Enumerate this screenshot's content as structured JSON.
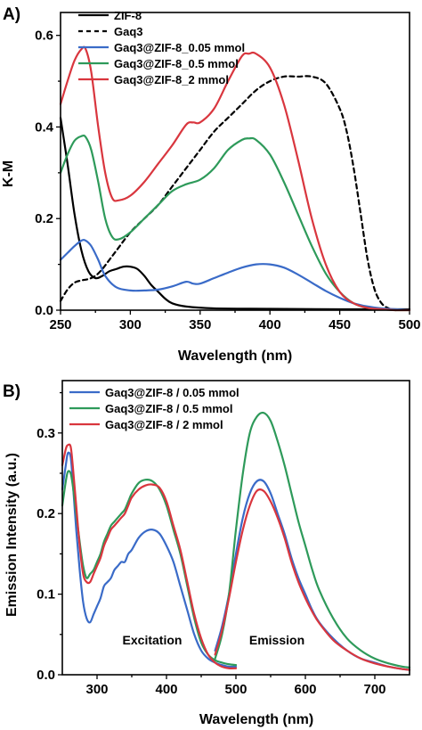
{
  "chart_data": [
    {
      "type": "line",
      "panel_label": "A)",
      "xlabel": "Wavelength (nm)",
      "ylabel": "K-M",
      "xlim": [
        250,
        500
      ],
      "ylim": [
        0,
        0.65
      ],
      "xticks": [
        "250",
        "300",
        "350",
        "400",
        "450",
        "500"
      ],
      "yticks": [
        "0.0",
        "0.2",
        "0.4",
        "0.6"
      ],
      "legend_position": "top-left",
      "series": [
        {
          "name": "ZIF-8",
          "color": "#000000",
          "dash": "solid",
          "x": [
            250,
            255,
            260,
            265,
            270,
            275,
            280,
            285,
            290,
            295,
            300,
            305,
            310,
            315,
            320,
            325,
            330,
            340,
            360,
            400,
            450,
            500
          ],
          "y": [
            0.42,
            0.32,
            0.21,
            0.13,
            0.085,
            0.07,
            0.075,
            0.085,
            0.09,
            0.095,
            0.095,
            0.09,
            0.075,
            0.055,
            0.04,
            0.025,
            0.015,
            0.008,
            0.004,
            0.003,
            0.002,
            0.002
          ]
        },
        {
          "name": "Gaq3",
          "color": "#000000",
          "dash": "dashed",
          "x": [
            250,
            255,
            260,
            265,
            270,
            275,
            280,
            285,
            290,
            300,
            310,
            320,
            330,
            340,
            350,
            360,
            370,
            380,
            390,
            400,
            410,
            420,
            430,
            440,
            450,
            455,
            460,
            465,
            470,
            475,
            480,
            485,
            490
          ],
          "y": [
            0.02,
            0.045,
            0.06,
            0.065,
            0.068,
            0.075,
            0.09,
            0.11,
            0.13,
            0.17,
            0.2,
            0.23,
            0.27,
            0.31,
            0.35,
            0.39,
            0.42,
            0.45,
            0.48,
            0.5,
            0.51,
            0.51,
            0.51,
            0.495,
            0.44,
            0.39,
            0.31,
            0.21,
            0.11,
            0.045,
            0.015,
            0.004,
            0.0
          ]
        },
        {
          "name": "Gaq3@ZIF-8_0.05 mmol",
          "color": "#3A6BC8",
          "dash": "solid",
          "x": [
            250,
            255,
            260,
            265,
            268,
            272,
            277,
            282,
            290,
            300,
            310,
            320,
            330,
            340,
            345,
            350,
            360,
            370,
            380,
            390,
            400,
            410,
            420,
            430,
            440,
            450,
            460,
            470,
            480,
            490,
            500
          ],
          "y": [
            0.11,
            0.125,
            0.14,
            0.152,
            0.152,
            0.14,
            0.11,
            0.075,
            0.05,
            0.043,
            0.043,
            0.045,
            0.052,
            0.062,
            0.058,
            0.058,
            0.07,
            0.082,
            0.093,
            0.1,
            0.1,
            0.093,
            0.078,
            0.06,
            0.042,
            0.027,
            0.015,
            0.008,
            0.004,
            0.002,
            0.0
          ]
        },
        {
          "name": "Gaq3@ZIF-8_0.5 mmol",
          "color": "#2E9A5A",
          "dash": "solid",
          "x": [
            250,
            255,
            260,
            265,
            268,
            272,
            277,
            282,
            287,
            292,
            300,
            310,
            320,
            330,
            340,
            350,
            360,
            370,
            380,
            385,
            390,
            400,
            410,
            420,
            430,
            440,
            450,
            460,
            470,
            480,
            490,
            500
          ],
          "y": [
            0.3,
            0.34,
            0.37,
            0.38,
            0.378,
            0.35,
            0.28,
            0.2,
            0.16,
            0.155,
            0.17,
            0.2,
            0.23,
            0.26,
            0.275,
            0.285,
            0.31,
            0.35,
            0.372,
            0.375,
            0.372,
            0.34,
            0.28,
            0.21,
            0.14,
            0.08,
            0.04,
            0.015,
            0.005,
            0.002,
            0.0,
            0.0
          ]
        },
        {
          "name": "Gaq3@ZIF-8_2 mmol",
          "color": "#D9363E",
          "dash": "solid",
          "x": [
            250,
            255,
            260,
            265,
            268,
            272,
            277,
            282,
            287,
            292,
            300,
            310,
            320,
            330,
            340,
            345,
            350,
            360,
            370,
            380,
            385,
            390,
            400,
            410,
            420,
            430,
            440,
            450,
            460,
            470,
            480,
            490,
            500
          ],
          "y": [
            0.45,
            0.5,
            0.545,
            0.57,
            0.57,
            0.52,
            0.4,
            0.3,
            0.245,
            0.24,
            0.25,
            0.28,
            0.32,
            0.36,
            0.405,
            0.41,
            0.41,
            0.44,
            0.5,
            0.555,
            0.56,
            0.56,
            0.53,
            0.45,
            0.33,
            0.2,
            0.1,
            0.04,
            0.015,
            0.005,
            0.002,
            0.0,
            0.0
          ]
        }
      ]
    },
    {
      "type": "line",
      "panel_label": "B)",
      "xlabel": "Wavelength (nm)",
      "ylabel": "Emission Intensity (a.u.)",
      "xlim": [
        250,
        750
      ],
      "ylim": [
        0,
        0.365
      ],
      "xticks": [
        "300",
        "400",
        "500",
        "600",
        "700"
      ],
      "yticks": [
        "0.0",
        "0.1",
        "0.2",
        "0.3"
      ],
      "legend_position": "top-left",
      "annotations": [
        "Excitation",
        "Emission"
      ],
      "series": [
        {
          "name": "Gaq3@ZIF-8 / 0.05 mmol",
          "color": "#3A6BC8",
          "dash": "solid",
          "excitation": {
            "x": [
              250,
              255,
              258,
              262,
              265,
              270,
              275,
              280,
              285,
              290,
              295,
              300,
              305,
              310,
              315,
              320,
              325,
              330,
              335,
              340,
              345,
              350,
              360,
              370,
              380,
              390,
              400,
              410,
              420,
              430,
              440,
              450,
              460,
              470,
              480,
              490,
              500
            ],
            "y": [
              0.23,
              0.26,
              0.275,
              0.27,
              0.24,
              0.18,
              0.13,
              0.09,
              0.07,
              0.065,
              0.075,
              0.085,
              0.095,
              0.11,
              0.115,
              0.12,
              0.13,
              0.135,
              0.14,
              0.14,
              0.15,
              0.155,
              0.17,
              0.178,
              0.18,
              0.175,
              0.16,
              0.14,
              0.11,
              0.08,
              0.05,
              0.03,
              0.02,
              0.015,
              0.012,
              0.01,
              0.01
            ]
          },
          "emission": {
            "x": [
              470,
              480,
              490,
              500,
              510,
              520,
              530,
              540,
              550,
              560,
              570,
              580,
              590,
              600,
              610,
              620,
              640,
              660,
              680,
              700,
              720,
              740,
              750
            ],
            "y": [
              0.03,
              0.06,
              0.1,
              0.15,
              0.195,
              0.225,
              0.24,
              0.24,
              0.225,
              0.2,
              0.175,
              0.145,
              0.12,
              0.1,
              0.08,
              0.065,
              0.045,
              0.03,
              0.02,
              0.015,
              0.01,
              0.007,
              0.006
            ]
          }
        },
        {
          "name": "Gaq3@ZIF-8 / 0.5 mmol",
          "color": "#2E9A5A",
          "dash": "solid",
          "excitation": {
            "x": [
              250,
              255,
              258,
              262,
              265,
              270,
              275,
              280,
              285,
              290,
              295,
              300,
              305,
              310,
              315,
              320,
              325,
              330,
              335,
              340,
              345,
              350,
              360,
              370,
              380,
              390,
              400,
              410,
              420,
              430,
              440,
              450,
              460,
              470,
              480,
              490,
              500
            ],
            "y": [
              0.21,
              0.24,
              0.252,
              0.25,
              0.235,
              0.2,
              0.165,
              0.135,
              0.12,
              0.125,
              0.13,
              0.14,
              0.15,
              0.165,
              0.175,
              0.185,
              0.19,
              0.195,
              0.2,
              0.205,
              0.215,
              0.225,
              0.238,
              0.242,
              0.24,
              0.23,
              0.21,
              0.18,
              0.15,
              0.11,
              0.07,
              0.04,
              0.025,
              0.018,
              0.015,
              0.013,
              0.012
            ]
          },
          "emission": {
            "x": [
              470,
              480,
              490,
              500,
              510,
              520,
              530,
              540,
              550,
              560,
              570,
              580,
              590,
              600,
              610,
              620,
              640,
              660,
              680,
              700,
              720,
              740,
              750
            ],
            "y": [
              0.02,
              0.05,
              0.1,
              0.18,
              0.25,
              0.3,
              0.32,
              0.325,
              0.315,
              0.29,
              0.26,
              0.225,
              0.19,
              0.16,
              0.13,
              0.105,
              0.07,
              0.045,
              0.03,
              0.02,
              0.014,
              0.01,
              0.009
            ]
          }
        },
        {
          "name": "Gaq3@ZIF-8 / 2 mmol",
          "color": "#D9363E",
          "dash": "solid",
          "excitation": {
            "x": [
              250,
              255,
              258,
              262,
              265,
              270,
              275,
              280,
              285,
              290,
              295,
              300,
              305,
              310,
              315,
              320,
              325,
              330,
              335,
              340,
              345,
              350,
              360,
              370,
              380,
              390,
              400,
              410,
              420,
              430,
              440,
              450,
              460,
              470,
              480,
              490,
              500
            ],
            "y": [
              0.26,
              0.28,
              0.285,
              0.283,
              0.26,
              0.21,
              0.16,
              0.125,
              0.115,
              0.115,
              0.125,
              0.135,
              0.145,
              0.16,
              0.17,
              0.18,
              0.185,
              0.19,
              0.195,
              0.2,
              0.21,
              0.22,
              0.23,
              0.235,
              0.236,
              0.232,
              0.215,
              0.185,
              0.155,
              0.115,
              0.075,
              0.045,
              0.025,
              0.015,
              0.01,
              0.008,
              0.008
            ]
          },
          "emission": {
            "x": [
              470,
              480,
              490,
              500,
              510,
              520,
              530,
              540,
              550,
              560,
              570,
              580,
              590,
              600,
              610,
              620,
              640,
              660,
              680,
              700,
              720,
              740,
              750
            ],
            "y": [
              0.025,
              0.055,
              0.095,
              0.14,
              0.18,
              0.21,
              0.228,
              0.228,
              0.215,
              0.195,
              0.17,
              0.14,
              0.115,
              0.095,
              0.078,
              0.064,
              0.043,
              0.03,
              0.02,
              0.014,
              0.01,
              0.007,
              0.006
            ]
          }
        }
      ]
    }
  ]
}
